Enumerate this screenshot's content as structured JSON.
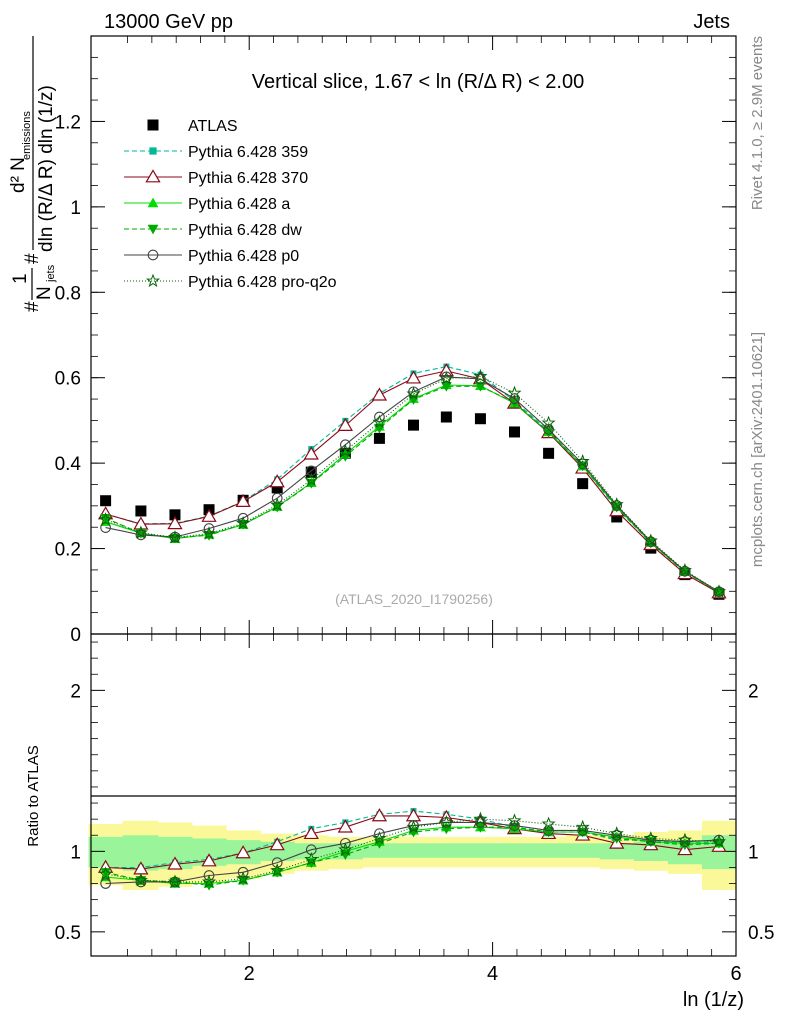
{
  "header": {
    "left": "13000 GeV pp",
    "right": "Jets",
    "side_top": "Rivet 4.1.0, ≥ 2.9M events",
    "side_bottom": "mcplots.cern.ch [arXiv:2401.10621]",
    "analysis": "(ATLAS_2020_I1790256)"
  },
  "chart_data": [
    {
      "type": "scatter",
      "panel": "main",
      "title": "Vertical slice, 1.67 < ln (R/Δ R) < 2.00",
      "xlabel": "ln (1/z)",
      "ylabel": "1/N_jets d²N_emissions / dln(R/ΔR) dln(1/z)",
      "ylabel_parts": {
        "n": "1",
        "jets": "N",
        "jets_sub": "jets",
        "d2": "d² N",
        "em_sub": "emissions",
        "den": "dln (R/Δ R) dln (1/z)"
      },
      "xlim": [
        0.7,
        6.0
      ],
      "ylim": [
        0,
        1.4
      ],
      "yticks": [
        0,
        0.2,
        0.4,
        0.6,
        0.8,
        1,
        1.2
      ],
      "ytick_labels": [
        "0",
        "0.2",
        "0.4",
        "0.6",
        "0.8",
        "1",
        "1.2"
      ],
      "x": [
        0.82,
        1.11,
        1.39,
        1.67,
        1.95,
        2.23,
        2.51,
        2.79,
        3.07,
        3.35,
        3.62,
        3.9,
        4.18,
        4.46,
        4.74,
        5.02,
        5.3,
        5.58,
        5.86
      ],
      "series": [
        {
          "name": "ATLAS",
          "color": "#000000",
          "marker": "square",
          "dash": "none",
          "values": [
            0.312,
            0.288,
            0.279,
            0.291,
            0.313,
            0.342,
            0.379,
            0.423,
            0.458,
            0.489,
            0.508,
            0.504,
            0.473,
            0.423,
            0.352,
            0.274,
            0.201,
            0.139,
            0.093
          ]
        },
        {
          "name": "Pythia 6.428 359",
          "color": "#00b894",
          "marker": "smallsquare",
          "dash": "5,3",
          "values": [
            0.281,
            0.258,
            0.259,
            0.276,
            0.311,
            0.362,
            0.433,
            0.499,
            0.563,
            0.61,
            0.626,
            0.607,
            0.545,
            0.476,
            0.393,
            0.294,
            0.216,
            0.146,
            0.099
          ]
        },
        {
          "name": "Pythia 6.428 370",
          "color": "#8b0a1a",
          "marker": "triangle-open",
          "dash": "none",
          "values": [
            0.281,
            0.257,
            0.258,
            0.275,
            0.31,
            0.356,
            0.421,
            0.488,
            0.559,
            0.599,
            0.616,
            0.597,
            0.54,
            0.471,
            0.388,
            0.288,
            0.209,
            0.141,
            0.096
          ]
        },
        {
          "name": "Pythia 6.428 a",
          "color": "#00dd00",
          "marker": "triangle",
          "dash": "none",
          "values": [
            0.263,
            0.236,
            0.223,
            0.233,
            0.256,
            0.298,
            0.354,
            0.421,
            0.486,
            0.551,
            0.583,
            0.581,
            0.54,
            0.473,
            0.393,
            0.298,
            0.214,
            0.146,
            0.098
          ]
        },
        {
          "name": "Pythia 6.428 dw",
          "color": "#00aa00",
          "marker": "triangle-down",
          "dash": "5,3",
          "values": [
            0.271,
            0.236,
            0.225,
            0.231,
            0.257,
            0.297,
            0.353,
            0.416,
            0.482,
            0.549,
            0.58,
            0.58,
            0.542,
            0.472,
            0.394,
            0.297,
            0.213,
            0.145,
            0.098
          ]
        },
        {
          "name": "Pythia 6.428 p0",
          "color": "#444444",
          "marker": "circle-open",
          "dash": "none",
          "values": [
            0.249,
            0.232,
            0.227,
            0.247,
            0.271,
            0.318,
            0.382,
            0.443,
            0.508,
            0.567,
            0.602,
            0.597,
            0.551,
            0.479,
            0.398,
            0.301,
            0.216,
            0.147,
            0.099
          ]
        },
        {
          "name": "Pythia 6.428 pro-q2o",
          "color": "#006600",
          "marker": "star",
          "dash": "1,2",
          "values": [
            0.268,
            0.237,
            0.226,
            0.235,
            0.259,
            0.302,
            0.361,
            0.428,
            0.496,
            0.562,
            0.598,
            0.603,
            0.564,
            0.494,
            0.404,
            0.303,
            0.218,
            0.149,
            0.099
          ]
        }
      ]
    },
    {
      "type": "line",
      "panel": "ratio",
      "ylabel": "Ratio to ATLAS",
      "xlabel": "ln (1/z)",
      "xlim": [
        0.7,
        6.0
      ],
      "ylim": [
        0.35,
        2.35
      ],
      "yticks": [
        0.5,
        1,
        2
      ],
      "ytick_labels": [
        "0.5",
        "1",
        "2"
      ],
      "xticks": [
        2,
        4,
        6
      ],
      "xtick_labels": [
        "2",
        "4",
        "6"
      ],
      "bin_edges": [
        0.68,
        0.96,
        1.25,
        1.53,
        1.81,
        2.09,
        2.37,
        2.65,
        2.93,
        3.21,
        3.48,
        3.76,
        4.04,
        4.32,
        4.6,
        4.88,
        5.16,
        5.44,
        5.72,
        6.0
      ],
      "band_yellow": [
        [
          0.79,
          1.17
        ],
        [
          0.76,
          1.19
        ],
        [
          0.78,
          1.18
        ],
        [
          0.8,
          1.16
        ],
        [
          0.83,
          1.13
        ],
        [
          0.86,
          1.11
        ],
        [
          0.88,
          1.1
        ],
        [
          0.89,
          1.09
        ],
        [
          0.9,
          1.09
        ],
        [
          0.9,
          1.09
        ],
        [
          0.9,
          1.09
        ],
        [
          0.9,
          1.09
        ],
        [
          0.9,
          1.09
        ],
        [
          0.9,
          1.09
        ],
        [
          0.9,
          1.1
        ],
        [
          0.89,
          1.1
        ],
        [
          0.88,
          1.12
        ],
        [
          0.86,
          1.13
        ],
        [
          0.76,
          1.19
        ]
      ],
      "band_green": [
        [
          0.9,
          1.09
        ],
        [
          0.88,
          1.1
        ],
        [
          0.89,
          1.09
        ],
        [
          0.91,
          1.08
        ],
        [
          0.92,
          1.07
        ],
        [
          0.94,
          1.06
        ],
        [
          0.95,
          1.05
        ],
        [
          0.95,
          1.05
        ],
        [
          0.96,
          1.05
        ],
        [
          0.96,
          1.05
        ],
        [
          0.96,
          1.05
        ],
        [
          0.96,
          1.05
        ],
        [
          0.96,
          1.05
        ],
        [
          0.96,
          1.05
        ],
        [
          0.96,
          1.05
        ],
        [
          0.95,
          1.05
        ],
        [
          0.94,
          1.06
        ],
        [
          0.92,
          1.07
        ],
        [
          0.89,
          1.1
        ]
      ],
      "series": [
        {
          "name": "Pythia 6.428 359",
          "color": "#00b894",
          "marker": "smallsquare",
          "dash": "5,3",
          "values": [
            0.9,
            0.9,
            0.93,
            0.95,
            0.99,
            1.06,
            1.14,
            1.18,
            1.23,
            1.25,
            1.23,
            1.2,
            1.15,
            1.12,
            1.12,
            1.07,
            1.07,
            1.05,
            1.06
          ]
        },
        {
          "name": "Pythia 6.428 370",
          "color": "#8b0a1a",
          "marker": "triangle-open",
          "dash": "none",
          "values": [
            0.9,
            0.89,
            0.92,
            0.94,
            0.99,
            1.04,
            1.11,
            1.15,
            1.22,
            1.22,
            1.21,
            1.18,
            1.14,
            1.11,
            1.1,
            1.05,
            1.04,
            1.01,
            1.03
          ]
        },
        {
          "name": "Pythia 6.428 a",
          "color": "#00dd00",
          "marker": "triangle",
          "dash": "none",
          "values": [
            0.84,
            0.82,
            0.8,
            0.8,
            0.82,
            0.87,
            0.93,
            1.0,
            1.06,
            1.13,
            1.15,
            1.15,
            1.14,
            1.12,
            1.12,
            1.09,
            1.06,
            1.05,
            1.05
          ]
        },
        {
          "name": "Pythia 6.428 dw",
          "color": "#00aa00",
          "marker": "triangle-down",
          "dash": "5,3",
          "values": [
            0.87,
            0.82,
            0.81,
            0.79,
            0.82,
            0.87,
            0.93,
            0.98,
            1.05,
            1.12,
            1.14,
            1.15,
            1.15,
            1.12,
            1.12,
            1.08,
            1.06,
            1.04,
            1.05
          ]
        },
        {
          "name": "Pythia 6.428 p0",
          "color": "#444444",
          "marker": "circle-open",
          "dash": "none",
          "values": [
            0.8,
            0.81,
            0.81,
            0.85,
            0.87,
            0.93,
            1.01,
            1.05,
            1.11,
            1.16,
            1.18,
            1.18,
            1.16,
            1.13,
            1.13,
            1.1,
            1.07,
            1.06,
            1.07
          ]
        },
        {
          "name": "Pythia 6.428 pro-q2o",
          "color": "#006600",
          "marker": "star",
          "dash": "1,2",
          "values": [
            0.86,
            0.82,
            0.81,
            0.81,
            0.83,
            0.88,
            0.95,
            1.01,
            1.08,
            1.15,
            1.18,
            1.2,
            1.19,
            1.17,
            1.15,
            1.11,
            1.08,
            1.07,
            1.06
          ]
        }
      ]
    }
  ]
}
